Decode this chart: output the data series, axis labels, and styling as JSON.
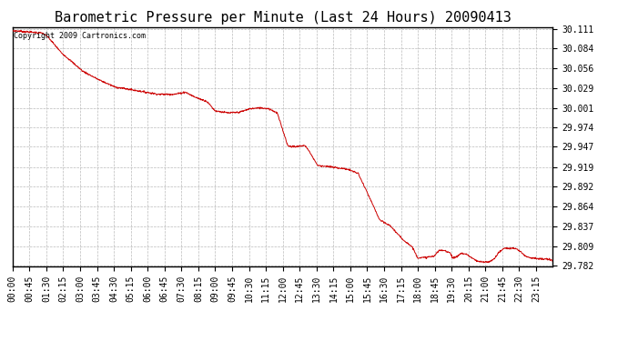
{
  "title": "Barometric Pressure per Minute (Last 24 Hours) 20090413",
  "copyright": "Copyright 2009 Cartronics.com",
  "line_color": "#cc0000",
  "background_color": "#ffffff",
  "grid_color": "#bbbbbb",
  "yticks": [
    29.782,
    29.809,
    29.837,
    29.864,
    29.892,
    29.919,
    29.947,
    29.974,
    30.001,
    30.029,
    30.056,
    30.084,
    30.111
  ],
  "xtick_labels": [
    "00:00",
    "00:45",
    "01:30",
    "02:15",
    "03:00",
    "03:45",
    "04:30",
    "05:15",
    "06:00",
    "06:45",
    "07:30",
    "08:15",
    "09:00",
    "09:45",
    "10:30",
    "11:15",
    "12:00",
    "12:45",
    "13:30",
    "14:15",
    "15:00",
    "15:45",
    "16:30",
    "17:15",
    "18:00",
    "18:45",
    "19:30",
    "20:15",
    "21:00",
    "21:45",
    "22:30",
    "23:15"
  ],
  "ylim_min": 29.782,
  "ylim_max": 30.111,
  "title_fontsize": 11,
  "tick_fontsize": 7,
  "keypoints": [
    [
      0.0,
      30.108
    ],
    [
      0.008,
      30.108
    ],
    [
      0.02,
      30.107
    ],
    [
      0.04,
      30.106
    ],
    [
      0.055,
      30.105
    ],
    [
      0.065,
      30.1
    ],
    [
      0.09,
      30.078
    ],
    [
      0.13,
      30.052
    ],
    [
      0.16,
      30.04
    ],
    [
      0.19,
      30.03
    ],
    [
      0.23,
      30.025
    ],
    [
      0.27,
      30.02
    ],
    [
      0.3,
      30.02
    ],
    [
      0.32,
      30.023
    ],
    [
      0.335,
      30.017
    ],
    [
      0.345,
      30.014
    ],
    [
      0.36,
      30.01
    ],
    [
      0.375,
      29.997
    ],
    [
      0.4,
      29.994
    ],
    [
      0.42,
      29.995
    ],
    [
      0.44,
      30.0
    ],
    [
      0.46,
      30.001
    ],
    [
      0.475,
      30.0
    ],
    [
      0.49,
      29.994
    ],
    [
      0.51,
      29.948
    ],
    [
      0.525,
      29.947
    ],
    [
      0.54,
      29.949
    ],
    [
      0.545,
      29.946
    ],
    [
      0.565,
      29.921
    ],
    [
      0.58,
      29.92
    ],
    [
      0.6,
      29.918
    ],
    [
      0.62,
      29.916
    ],
    [
      0.64,
      29.91
    ],
    [
      0.66,
      29.878
    ],
    [
      0.68,
      29.845
    ],
    [
      0.7,
      29.837
    ],
    [
      0.72,
      29.82
    ],
    [
      0.74,
      29.808
    ],
    [
      0.75,
      29.793
    ],
    [
      0.76,
      29.793
    ],
    [
      0.78,
      29.795
    ],
    [
      0.79,
      29.803
    ],
    [
      0.8,
      29.803
    ],
    [
      0.81,
      29.8
    ],
    [
      0.815,
      29.793
    ],
    [
      0.82,
      29.793
    ],
    [
      0.825,
      29.796
    ],
    [
      0.83,
      29.799
    ],
    [
      0.84,
      29.798
    ],
    [
      0.85,
      29.793
    ],
    [
      0.86,
      29.788
    ],
    [
      0.87,
      29.787
    ],
    [
      0.88,
      29.787
    ],
    [
      0.89,
      29.79
    ],
    [
      0.9,
      29.8
    ],
    [
      0.91,
      29.806
    ],
    [
      0.92,
      29.806
    ],
    [
      0.93,
      29.806
    ],
    [
      0.94,
      29.802
    ],
    [
      0.95,
      29.795
    ],
    [
      0.96,
      29.793
    ],
    [
      0.97,
      29.792
    ],
    [
      0.98,
      29.791
    ],
    [
      0.99,
      29.791
    ],
    [
      1.0,
      29.789
    ]
  ]
}
